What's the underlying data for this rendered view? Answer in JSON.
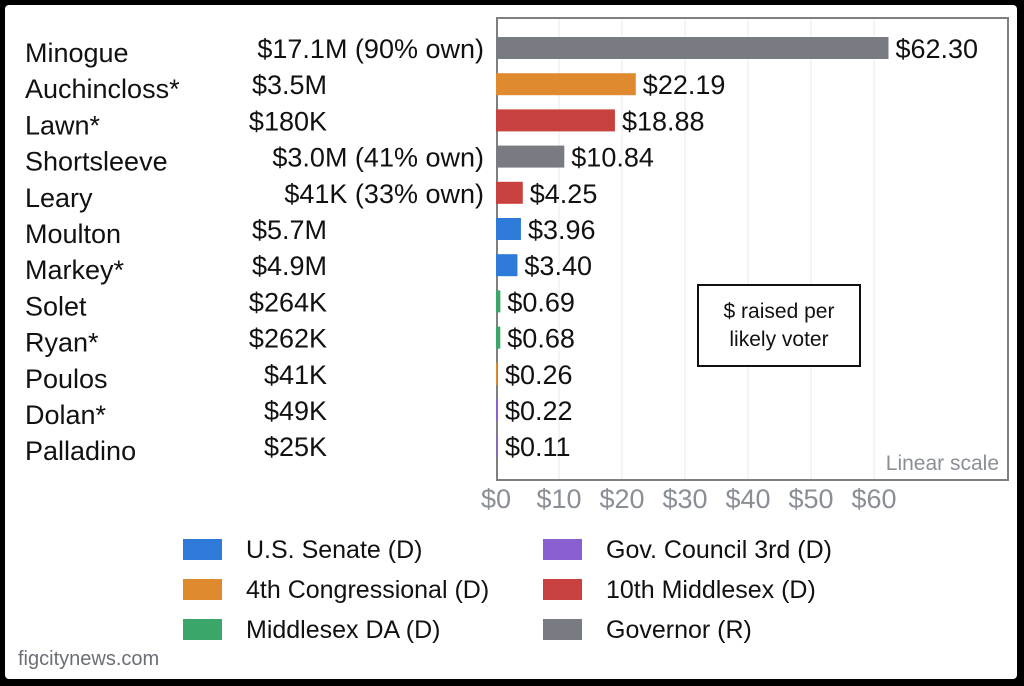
{
  "chart_data": {
    "type": "bar",
    "orientation": "horizontal",
    "categories": [
      "Minogue",
      "Auchincloss*",
      "Lawn*",
      "Shortsleeve",
      "Leary",
      "Moulton",
      "Markey*",
      "Solet",
      "Ryan*",
      "Poulos",
      "Dolan*",
      "Palladino"
    ],
    "raised": [
      "$17.1M (90% own)",
      "$3.5M",
      "$180K",
      "$3.0M (41% own)",
      "$41K (33% own)",
      "$5.7M",
      "$4.9M",
      "$264K",
      "$262K",
      "$41K",
      "$49K",
      "$25K"
    ],
    "values": [
      62.3,
      22.19,
      18.88,
      10.84,
      4.25,
      3.96,
      3.4,
      0.69,
      0.68,
      0.26,
      0.22,
      0.11
    ],
    "value_labels": [
      "$62.30",
      "$22.19",
      "$18.88",
      "$10.84",
      "$4.25",
      "$3.96",
      "$3.40",
      "$0.69",
      "$0.68",
      "$0.26",
      "$0.22",
      "$0.11"
    ],
    "race": [
      "Governor (R)",
      "4th Congressional (D)",
      "10th Middlesex (D)",
      "Governor (R)",
      "10th Middlesex (D)",
      "U.S. Senate (D)",
      "U.S. Senate (D)",
      "Middlesex DA (D)",
      "Middlesex DA (D)",
      "4th Congressional (D)",
      "Gov. Council 3rd (D)",
      "Gov. Council 3rd (D)"
    ],
    "xlim": [
      0,
      70
    ],
    "xticks": [
      0,
      10,
      20,
      30,
      40,
      50,
      60
    ],
    "xtick_labels": [
      "$0",
      "$10",
      "$20",
      "$30",
      "$40",
      "$50",
      "$60"
    ],
    "scale_note": "Linear scale",
    "annotation": [
      "$ raised per",
      "likely voter"
    ],
    "grid": true,
    "legend_placement": "bottom",
    "legend": [
      {
        "name": "U.S. Senate (D)",
        "color": "#2e7ad9"
      },
      {
        "name": "Gov. Council 3rd (D)",
        "color": "#8a5fcf"
      },
      {
        "name": "4th Congressional (D)",
        "color": "#e08a30"
      },
      {
        "name": "10th Middlesex (D)",
        "color": "#c9413f"
      },
      {
        "name": "Middlesex DA (D)",
        "color": "#3aa66a"
      },
      {
        "name": "Governor (R)",
        "color": "#787c82"
      }
    ]
  },
  "credit": "figcitynews.com"
}
